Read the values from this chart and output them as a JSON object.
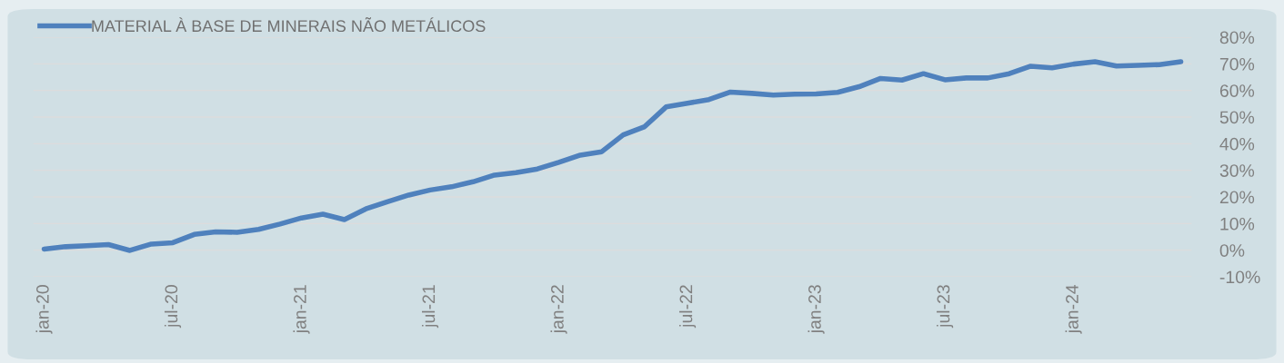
{
  "chart_data": {
    "type": "line",
    "categories": [
      "jan-20",
      null,
      null,
      null,
      null,
      null,
      "jul-20",
      null,
      null,
      null,
      null,
      null,
      "jan-21",
      null,
      null,
      null,
      null,
      null,
      "jul-21",
      null,
      null,
      null,
      null,
      null,
      "jan-22",
      null,
      null,
      null,
      null,
      null,
      "jul-22",
      null,
      null,
      null,
      null,
      null,
      "jan-23",
      null,
      null,
      null,
      null,
      null,
      "jul-23",
      null,
      null,
      null,
      null,
      null,
      "jan-24",
      null,
      null,
      null,
      null,
      null
    ],
    "series": [
      {
        "name": "MATERIAL À BASE DE MINERAIS NÃO METÁLICOS",
        "color": "#4f81bd",
        "values": [
          0.4,
          1.3,
          1.7,
          2.1,
          -0.1,
          2.3,
          2.8,
          5.9,
          6.9,
          6.7,
          7.8,
          9.8,
          12.1,
          13.5,
          11.5,
          15.5,
          18.2,
          20.7,
          22.6,
          23.8,
          25.7,
          28.2,
          29.1,
          30.5,
          33.0,
          35.7,
          37.0,
          43.3,
          46.4,
          53.8,
          55.2,
          56.6,
          59.4,
          58.9,
          58.3,
          58.6,
          58.7,
          59.3,
          61.4,
          64.5,
          63.9,
          66.3,
          64.0,
          64.7,
          64.7,
          66.3,
          69.1,
          68.5,
          69.9,
          70.8,
          69.2,
          69.4,
          69.7,
          70.8
        ]
      }
    ],
    "ylim": [
      -10,
      80
    ],
    "yticks": [
      {
        "value": -10,
        "label": "-10%"
      },
      {
        "value": 0,
        "label": "0%"
      },
      {
        "value": 10,
        "label": "10%"
      },
      {
        "value": 20,
        "label": "20%"
      },
      {
        "value": 30,
        "label": "30%"
      },
      {
        "value": 40,
        "label": "40%"
      },
      {
        "value": 50,
        "label": "50%"
      },
      {
        "value": 60,
        "label": "60%"
      },
      {
        "value": 70,
        "label": "70%"
      },
      {
        "value": 80,
        "label": "80%"
      }
    ],
    "grid": "y",
    "legend": "top left",
    "marker": "none",
    "line_style": "solid"
  }
}
